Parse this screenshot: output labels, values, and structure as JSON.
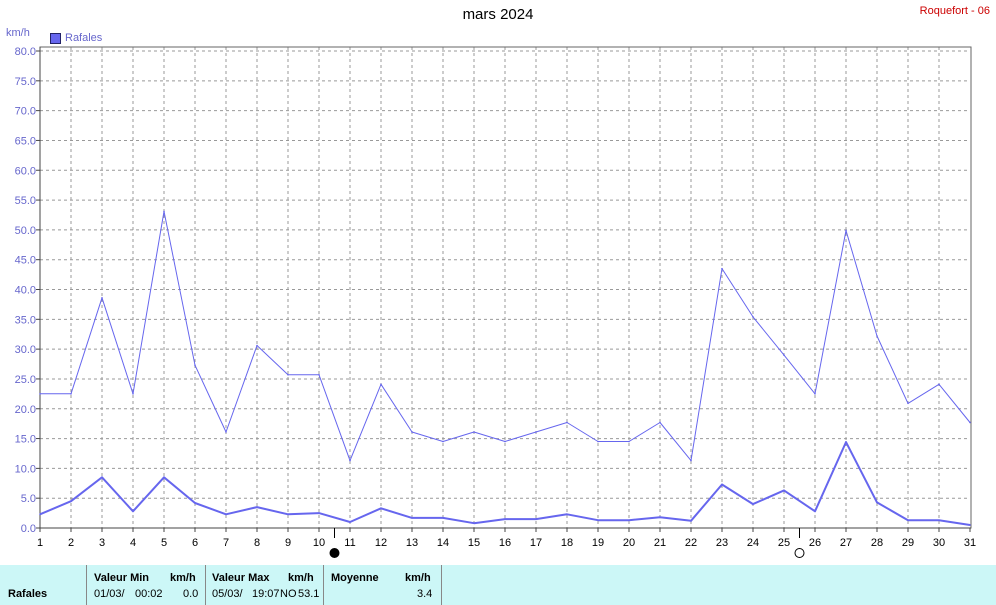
{
  "header": {
    "title": "mars 2024",
    "station": "Roquefort - 06",
    "unit": "km/h",
    "legend_label": "Rafales"
  },
  "colors": {
    "series": "#6666ee",
    "grid": "#999999",
    "station_text": "#cc0000",
    "stats_bg": "#ccf7f7"
  },
  "moon_phases": [
    {
      "day": 10,
      "phase": "new-moon"
    },
    {
      "day": 25,
      "phase": "full-moon"
    }
  ],
  "chart_data": {
    "type": "line",
    "title": "mars 2024",
    "xlabel": "",
    "ylabel": "km/h",
    "x": [
      1,
      2,
      3,
      4,
      5,
      6,
      7,
      8,
      9,
      10,
      11,
      12,
      13,
      14,
      15,
      16,
      17,
      18,
      19,
      20,
      21,
      22,
      23,
      24,
      25,
      26,
      27,
      28,
      29,
      30,
      31
    ],
    "ylim": [
      0,
      80
    ],
    "yticks": [
      "0.0",
      "5.0",
      "10.0",
      "15.0",
      "20.0",
      "25.0",
      "30.0",
      "35.0",
      "40.0",
      "45.0",
      "50.0",
      "55.0",
      "60.0",
      "65.0",
      "70.0",
      "75.0",
      "80.0"
    ],
    "grid": true,
    "legend_position": "top-left",
    "series": [
      {
        "name": "Rafales",
        "values": [
          22.5,
          22.5,
          38.6,
          22.5,
          53.1,
          27.3,
          16.1,
          30.6,
          25.7,
          25.7,
          11.3,
          24.1,
          16.1,
          14.5,
          16.1,
          14.5,
          16.1,
          17.7,
          14.5,
          14.5,
          17.7,
          11.3,
          43.5,
          35.4,
          29.0,
          22.5,
          49.9,
          32.2,
          20.9,
          24.1,
          17.7
        ]
      },
      {
        "values": [
          2.3,
          4.5,
          8.5,
          2.8,
          8.5,
          4.2,
          2.3,
          3.5,
          2.3,
          2.5,
          1.0,
          3.3,
          1.7,
          1.7,
          0.8,
          1.5,
          1.5,
          2.3,
          1.3,
          1.3,
          1.8,
          1.2,
          7.3,
          4.0,
          6.3,
          2.8,
          14.4,
          4.3,
          1.3,
          1.3,
          0.5
        ]
      }
    ]
  },
  "stats": {
    "row_label": "Rafales",
    "min_header": "Valeur Min",
    "min_unit": "km/h",
    "min_date": "01/03/",
    "min_time": "00:02",
    "min_value": "0.0",
    "max_header": "Valeur Max",
    "max_unit": "km/h",
    "max_date": "05/03/",
    "max_time": "19:07",
    "max_dir": "NO",
    "max_value": "53.1",
    "avg_header": "Moyenne",
    "avg_unit": "km/h",
    "avg_value": "3.4"
  }
}
